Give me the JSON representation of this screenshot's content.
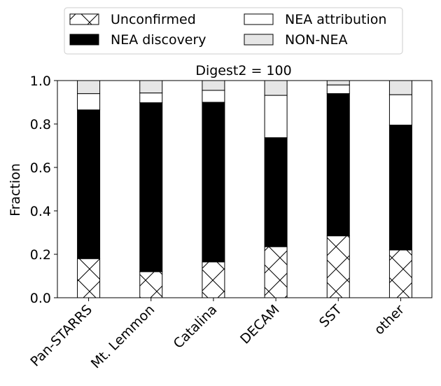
{
  "chart_data": {
    "type": "bar",
    "stacked": true,
    "title": "Digest2 = 100",
    "xlabel": "",
    "ylabel": "Fraction",
    "ylim": [
      0,
      1.0
    ],
    "yticks": [
      "0.0",
      "0.2",
      "0.4",
      "0.6",
      "0.8",
      "1.0"
    ],
    "categories": [
      "Pan-STARRS",
      "Mt. Lemmon",
      "Catalina",
      "DECAM",
      "SST",
      "other"
    ],
    "series": [
      {
        "name": "Unconfirmed",
        "fill": "#ffffff",
        "pattern": "crosshatch",
        "values": [
          0.18,
          0.12,
          0.165,
          0.235,
          0.285,
          0.22
        ]
      },
      {
        "name": "NEA discovery",
        "fill": "#000000",
        "values": [
          0.685,
          0.778,
          0.735,
          0.502,
          0.655,
          0.575
        ]
      },
      {
        "name": "NEA attribution",
        "fill": "#ffffff",
        "values": [
          0.075,
          0.045,
          0.055,
          0.195,
          0.04,
          0.14
        ]
      },
      {
        "name": "NON-NEA",
        "fill": "#e6e6e6",
        "values": [
          0.06,
          0.057,
          0.045,
          0.068,
          0.02,
          0.065
        ]
      }
    ],
    "legend": {
      "placement": "top",
      "columns": 2
    }
  }
}
